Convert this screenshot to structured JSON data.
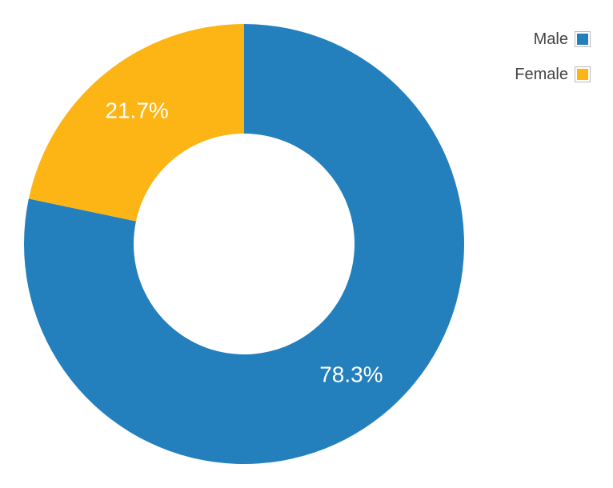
{
  "chart_data": {
    "type": "pie",
    "donut": true,
    "categories": [
      "Male",
      "Female"
    ],
    "values": [
      78.3,
      21.7
    ],
    "data_labels": [
      "78.3%",
      "21.7%"
    ],
    "colors": [
      "#2480bd",
      "#fdb515"
    ],
    "legend_position": "top-right"
  },
  "legend": {
    "items": [
      {
        "label": "Male",
        "color": "#2480bd"
      },
      {
        "label": "Female",
        "color": "#fdb515"
      }
    ]
  }
}
